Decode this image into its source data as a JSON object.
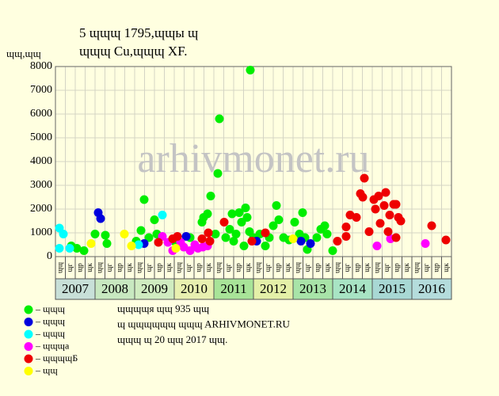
{
  "chart_data": {
    "type": "scatter",
    "title": "5 ɰɰɰ 1795,ɰɰы ɰ",
    "subtitle": "ɰɰɰ Cu,ɰɰɰ XF.",
    "y_label": "ɰɰ,ɰɰ",
    "watermark": "arhivmonet.ru",
    "xlim": [
      2007,
      2017
    ],
    "ylim": [
      0,
      8000
    ],
    "yticks": [
      0,
      1000,
      2000,
      3000,
      4000,
      5000,
      6000,
      7000,
      8000
    ],
    "xticks": [
      2007,
      2008,
      2009,
      2010,
      2011,
      2012,
      2013,
      2014,
      2015,
      2016
    ],
    "year_colors": [
      "#c8e0d8",
      "#c8e8c0",
      "#d0ecc0",
      "#e8f0b0",
      "#a8e498",
      "#e4f0a8",
      "#a8e4a8",
      "#a8e4c4",
      "#a8d8d4",
      "#b4dcdc"
    ],
    "quarter_labels": [
      "ɰɰ",
      "ɰг",
      "ɰр",
      "ɰк"
    ],
    "grid": true,
    "series": [
      {
        "name": "– ɰɰɰ",
        "color": "#00ee00",
        "x": [
          2007.4,
          2007.54,
          2007.72,
          2008.0,
          2008.26,
          2008.3,
          2009.04,
          2009.16,
          2009.24,
          2009.36,
          2009.5,
          2009.56,
          2010.0,
          2010.4,
          2010.7,
          2010.74,
          2010.84,
          2010.92,
          2011.04,
          2011.1,
          2011.14,
          2011.3,
          2011.4,
          2011.46,
          2011.5,
          2011.56,
          2011.64,
          2011.7,
          2011.76,
          2011.8,
          2011.84,
          2011.9,
          2011.92,
          2012.0,
          2012.16,
          2012.3,
          2012.4,
          2012.5,
          2012.58,
          2012.64,
          2012.76,
          2012.9,
          2013.04,
          2013.16,
          2013.24,
          2013.3,
          2013.36,
          2013.6,
          2013.7,
          2013.8,
          2013.86,
          2014.0
        ],
        "values": [
          450,
          350,
          250,
          950,
          900,
          550,
          650,
          1100,
          2400,
          800,
          1550,
          950,
          650,
          800,
          1450,
          1650,
          1800,
          2550,
          950,
          3500,
          5800,
          800,
          1150,
          1800,
          650,
          950,
          1850,
          1450,
          450,
          2050,
          1650,
          1050,
          7850,
          800,
          950,
          450,
          800,
          1300,
          2150,
          1550,
          800,
          700,
          1450,
          950,
          1850,
          800,
          300,
          800,
          1150,
          1300,
          950,
          250
        ]
      },
      {
        "name": "– ɰɰɰ",
        "color": "#0000dd",
        "x": [
          2008.08,
          2008.14,
          2009.24,
          2010.3,
          2012.08,
          2013.2,
          2013.44
        ],
        "values": [
          1850,
          1600,
          550,
          850,
          650,
          650,
          550
        ]
      },
      {
        "name": "– ɰɰɰ",
        "color": "#00ffff",
        "x": [
          2007.1,
          2007.2,
          2007.1,
          2007.36,
          2009.7,
          2009.1
        ],
        "values": [
          1200,
          950,
          350,
          350,
          1750,
          500
        ]
      },
      {
        "name": "– ɰɰɰa",
        "color": "#ff00ff",
        "x": [
          2009.7,
          2009.84,
          2009.96,
          2010.16,
          2010.24,
          2010.4,
          2010.52,
          2010.6,
          2010.72,
          2010.84,
          2015.12,
          2015.46,
          2016.34
        ],
        "values": [
          850,
          600,
          250,
          600,
          400,
          250,
          500,
          350,
          400,
          450,
          450,
          750,
          550
        ]
      },
      {
        "name": "– ɰɰɰɰБ",
        "color": "#ee0000",
        "x": [
          2009.6,
          2009.96,
          2010.08,
          2010.7,
          2010.86,
          2010.9,
          2011.26,
          2011.96,
          2012.3,
          2014.12,
          2014.34,
          2014.34,
          2014.44,
          2014.6,
          2014.7,
          2014.8,
          2014.76,
          2014.92,
          2015.04,
          2015.08,
          2015.16,
          2015.2,
          2015.3,
          2015.34,
          2015.4,
          2015.44,
          2015.54,
          2015.6,
          2015.6,
          2015.66,
          2015.72,
          2016.5,
          2016.86
        ],
        "values": [
          600,
          750,
          850,
          750,
          1000,
          650,
          1450,
          650,
          1000,
          650,
          850,
          1250,
          1750,
          1650,
          2650,
          3300,
          2500,
          1050,
          2400,
          2000,
          2550,
          1400,
          2150,
          2700,
          1050,
          1750,
          2200,
          2200,
          800,
          1650,
          1500,
          1300,
          700
        ]
      },
      {
        "name": "– ɰɰ",
        "color": "#ffff00",
        "x": [
          2007.9,
          2008.74,
          2008.92,
          2010.04,
          2013.0
        ],
        "values": [
          550,
          950,
          450,
          350,
          750
        ]
      }
    ],
    "notes": [
      "ɰɰɰɰя ɰɰ 935 ɰɰ",
      "ɰ ɰɰɰɰɰɰ ɰɰɰ ARHIVMONET.RU",
      "ɰɰɰ ɰ 20 ɰɰ 2017 ɰɰ."
    ]
  }
}
